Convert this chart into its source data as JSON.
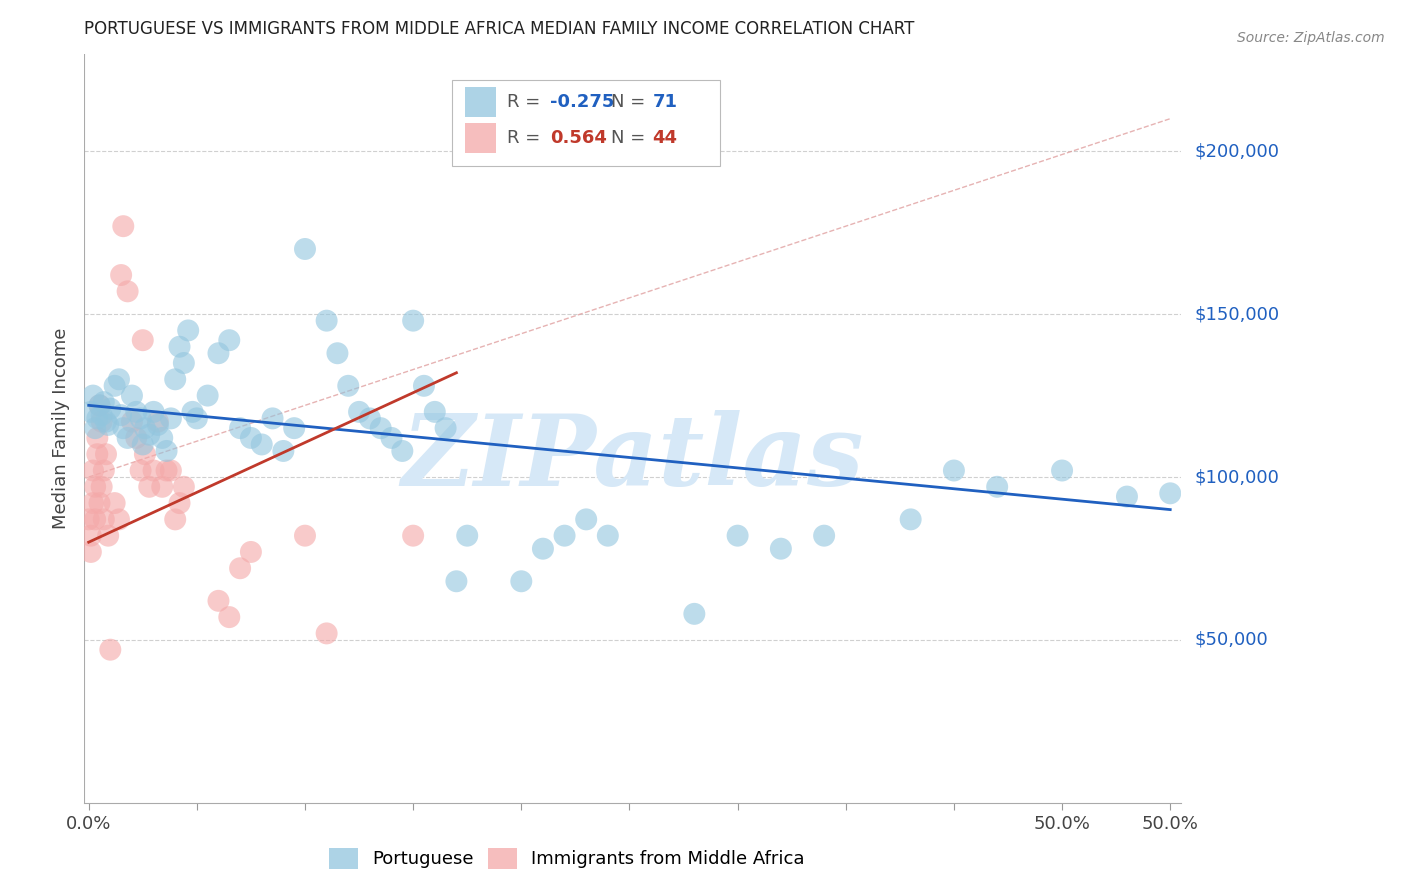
{
  "title": "PORTUGUESE VS IMMIGRANTS FROM MIDDLE AFRICA MEDIAN FAMILY INCOME CORRELATION CHART",
  "source": "Source: ZipAtlas.com",
  "ylabel": "Median Family Income",
  "xlim": [
    -0.002,
    0.505
  ],
  "ylim": [
    0,
    230000
  ],
  "xtick_positions": [
    0.0,
    0.05,
    0.1,
    0.15,
    0.2,
    0.25,
    0.3,
    0.35,
    0.4,
    0.45,
    0.5
  ],
  "xtick_labels_show": {
    "0.0": "0.0%",
    "0.5": "50.0%"
  },
  "yticks_right": [
    50000,
    100000,
    150000,
    200000
  ],
  "ytick_labels_right": [
    "$50,000",
    "$100,000",
    "$150,000",
    "$200,000"
  ],
  "blue_R": "-0.275",
  "blue_N": "71",
  "pink_R": "0.564",
  "pink_N": "44",
  "blue_color": "#92c5de",
  "pink_color": "#f4a8a8",
  "blue_line_color": "#2060c0",
  "pink_line_color": "#c0392b",
  "legend_blue_label": "Portuguese",
  "legend_pink_label": "Immigrants from Middle Africa",
  "blue_scatter": [
    [
      0.001,
      120000
    ],
    [
      0.002,
      125000
    ],
    [
      0.003,
      115000
    ],
    [
      0.004,
      118000
    ],
    [
      0.005,
      122000
    ],
    [
      0.006,
      119000
    ],
    [
      0.007,
      123000
    ],
    [
      0.008,
      117000
    ],
    [
      0.009,
      116000
    ],
    [
      0.01,
      121000
    ],
    [
      0.012,
      128000
    ],
    [
      0.014,
      130000
    ],
    [
      0.015,
      119000
    ],
    [
      0.016,
      115000
    ],
    [
      0.018,
      112000
    ],
    [
      0.02,
      125000
    ],
    [
      0.022,
      120000
    ],
    [
      0.024,
      118000
    ],
    [
      0.025,
      110000
    ],
    [
      0.026,
      115000
    ],
    [
      0.028,
      113000
    ],
    [
      0.03,
      120000
    ],
    [
      0.032,
      116000
    ],
    [
      0.034,
      112000
    ],
    [
      0.036,
      108000
    ],
    [
      0.038,
      118000
    ],
    [
      0.04,
      130000
    ],
    [
      0.042,
      140000
    ],
    [
      0.044,
      135000
    ],
    [
      0.046,
      145000
    ],
    [
      0.048,
      120000
    ],
    [
      0.05,
      118000
    ],
    [
      0.055,
      125000
    ],
    [
      0.06,
      138000
    ],
    [
      0.065,
      142000
    ],
    [
      0.07,
      115000
    ],
    [
      0.075,
      112000
    ],
    [
      0.08,
      110000
    ],
    [
      0.085,
      118000
    ],
    [
      0.09,
      108000
    ],
    [
      0.095,
      115000
    ],
    [
      0.1,
      170000
    ],
    [
      0.11,
      148000
    ],
    [
      0.115,
      138000
    ],
    [
      0.12,
      128000
    ],
    [
      0.125,
      120000
    ],
    [
      0.13,
      118000
    ],
    [
      0.135,
      115000
    ],
    [
      0.14,
      112000
    ],
    [
      0.145,
      108000
    ],
    [
      0.15,
      148000
    ],
    [
      0.155,
      128000
    ],
    [
      0.16,
      120000
    ],
    [
      0.165,
      115000
    ],
    [
      0.17,
      68000
    ],
    [
      0.175,
      82000
    ],
    [
      0.2,
      68000
    ],
    [
      0.21,
      78000
    ],
    [
      0.22,
      82000
    ],
    [
      0.23,
      87000
    ],
    [
      0.24,
      82000
    ],
    [
      0.28,
      58000
    ],
    [
      0.3,
      82000
    ],
    [
      0.32,
      78000
    ],
    [
      0.34,
      82000
    ],
    [
      0.38,
      87000
    ],
    [
      0.4,
      102000
    ],
    [
      0.42,
      97000
    ],
    [
      0.45,
      102000
    ],
    [
      0.48,
      94000
    ],
    [
      0.5,
      95000
    ]
  ],
  "pink_scatter": [
    [
      0.0,
      87000
    ],
    [
      0.001,
      77000
    ],
    [
      0.001,
      82000
    ],
    [
      0.002,
      92000
    ],
    [
      0.002,
      102000
    ],
    [
      0.003,
      97000
    ],
    [
      0.003,
      87000
    ],
    [
      0.004,
      112000
    ],
    [
      0.004,
      107000
    ],
    [
      0.005,
      122000
    ],
    [
      0.005,
      92000
    ],
    [
      0.006,
      97000
    ],
    [
      0.006,
      117000
    ],
    [
      0.007,
      102000
    ],
    [
      0.007,
      87000
    ],
    [
      0.008,
      107000
    ],
    [
      0.009,
      82000
    ],
    [
      0.01,
      47000
    ],
    [
      0.012,
      92000
    ],
    [
      0.014,
      87000
    ],
    [
      0.015,
      162000
    ],
    [
      0.016,
      177000
    ],
    [
      0.018,
      157000
    ],
    [
      0.02,
      117000
    ],
    [
      0.022,
      112000
    ],
    [
      0.024,
      102000
    ],
    [
      0.025,
      142000
    ],
    [
      0.026,
      107000
    ],
    [
      0.028,
      97000
    ],
    [
      0.03,
      102000
    ],
    [
      0.032,
      117000
    ],
    [
      0.034,
      97000
    ],
    [
      0.036,
      102000
    ],
    [
      0.038,
      102000
    ],
    [
      0.04,
      87000
    ],
    [
      0.042,
      92000
    ],
    [
      0.044,
      97000
    ],
    [
      0.06,
      62000
    ],
    [
      0.065,
      57000
    ],
    [
      0.07,
      72000
    ],
    [
      0.075,
      77000
    ],
    [
      0.1,
      82000
    ],
    [
      0.11,
      52000
    ],
    [
      0.15,
      82000
    ]
  ],
  "blue_trend": [
    0.0,
    122000,
    0.5,
    90000
  ],
  "pink_trend": [
    0.0,
    80000,
    0.17,
    132000
  ],
  "diag_line": [
    0.0,
    100000,
    0.5,
    210000
  ],
  "background_color": "#ffffff",
  "grid_color": "#d0d0d0",
  "title_color": "#222222",
  "right_label_color": "#2060c0",
  "watermark_text": "ZIPatlas",
  "watermark_color": "#d6e8f7",
  "marker_size": 250
}
